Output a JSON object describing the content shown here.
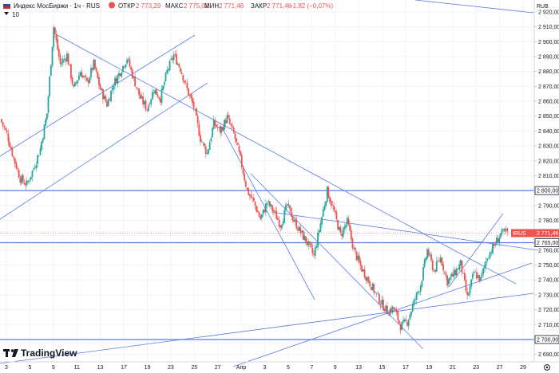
{
  "header": {
    "symbol_title": "Индекс МосБиржи · 1ч · RUS",
    "open_label": "ОТКР",
    "open_value": "2 773,29",
    "high_label": "МАКС",
    "high_value": "2 775,02",
    "low_label": "МИН",
    "low_value": "2 771,46",
    "close_label": "ЗАКР",
    "close_value": "2 771,46",
    "change": "−1,82 (−0,07%)",
    "indicator_value": "10"
  },
  "currency": "RUB",
  "logo": "TradingView",
  "colors": {
    "up": "#26a69a",
    "down": "#ef5350",
    "line": "#5b7be6",
    "accent": "#2962ff"
  },
  "chart_data": {
    "type": "candlestick",
    "ylim": [
      2685,
      2928
    ],
    "y_ticks": [
      2920,
      2910,
      2900,
      2890,
      2880,
      2870,
      2860,
      2850,
      2840,
      2830,
      2820,
      2810,
      2800,
      2790,
      2780,
      2770,
      2760,
      2750,
      2740,
      2730,
      2720,
      2710,
      2700,
      2690
    ],
    "y_tick_labels": [
      "2 920,00",
      "2 910,00",
      "2 900,00",
      "2 890,00",
      "2 880,00",
      "2 870,00",
      "2 860,00",
      "2 850,00",
      "2 840,00",
      "2 830,00",
      "2 820,00",
      "2 810,00",
      "2 800,00",
      "2 790,00",
      "2 780,00",
      "2 770,00",
      "2 760,00",
      "2 750,00",
      "2 740,00",
      "2 730,00",
      "2 720,00",
      "2 710,00",
      "2 700,00",
      "2 690,00"
    ],
    "x_labels": [
      "3",
      "5",
      "9",
      "11",
      "13",
      "17",
      "19",
      "23",
      "25",
      "27",
      "Апр",
      "3",
      "5",
      "7",
      "9",
      "13",
      "15",
      "17",
      "19",
      "21",
      "23",
      "27",
      "29"
    ],
    "price_lines": [
      {
        "value": 2800.0,
        "label": "2 800,00"
      },
      {
        "value": 2765.0,
        "label": "2 765,00"
      },
      {
        "value": 2700.0,
        "label": "2 700,00"
      }
    ],
    "current_price": {
      "ticker": "IRUS",
      "value": 2771.46,
      "label": "2 771,46"
    },
    "path": [
      2848,
      2838,
      2822,
      2808,
      2804,
      2815,
      2828,
      2852,
      2910,
      2885,
      2891,
      2868,
      2880,
      2872,
      2885,
      2868,
      2858,
      2872,
      2880,
      2889,
      2875,
      2862,
      2855,
      2868,
      2862,
      2880,
      2891,
      2882,
      2868,
      2856,
      2835,
      2825,
      2845,
      2840,
      2849,
      2838,
      2821,
      2800,
      2792,
      2781,
      2792,
      2786,
      2777,
      2790,
      2780,
      2772,
      2765,
      2756,
      2778,
      2800,
      2786,
      2770,
      2779,
      2760,
      2749,
      2741,
      2733,
      2725,
      2719,
      2721,
      2709,
      2712,
      2725,
      2737,
      2760,
      2746,
      2755,
      2739,
      2744,
      2751,
      2728,
      2745,
      2740,
      2756,
      2763,
      2771,
      2772
    ]
  }
}
